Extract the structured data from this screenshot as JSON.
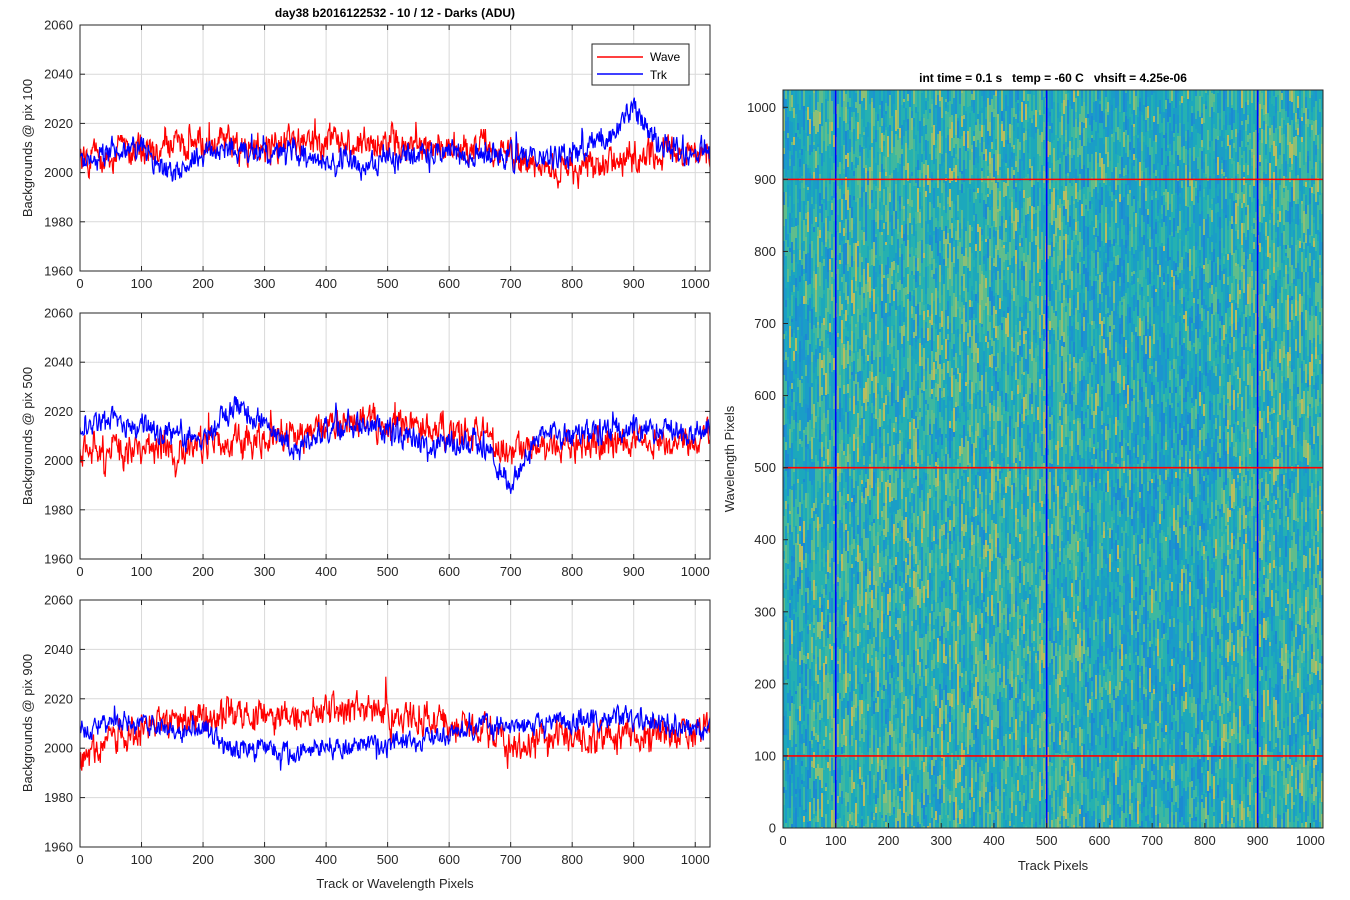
{
  "figure_title": "day38 b2016122532 - 10 / 12 - Darks (ADU)",
  "colors": {
    "wave": "#ff0000",
    "trk": "#0000ff",
    "grid": "#d9d9d9",
    "axis": "#262626"
  },
  "chart_data": [
    {
      "type": "line",
      "title": "day38 b2016122532 - 10 / 12 - Darks (ADU)",
      "xlabel": "",
      "ylabel": "Backgrounds @ pix 100",
      "xlim": [
        0,
        1024
      ],
      "ylim": [
        1960,
        2060
      ],
      "xticks": [
        0,
        100,
        200,
        300,
        400,
        500,
        600,
        700,
        800,
        900,
        1000
      ],
      "yticks": [
        1960,
        1980,
        2000,
        2020,
        2040,
        2060
      ],
      "grid": true,
      "legend": {
        "position": "top-right",
        "entries": [
          "Wave",
          "Trk"
        ]
      },
      "series": [
        {
          "name": "Wave",
          "color": "#ff0000",
          "x": [
            0,
            50,
            100,
            150,
            200,
            250,
            300,
            350,
            400,
            450,
            500,
            550,
            600,
            650,
            700,
            750,
            800,
            850,
            900,
            950,
            1000,
            1023
          ],
          "mean": [
            2005,
            2008,
            2009,
            2010,
            2012,
            2011,
            2010,
            2012,
            2012,
            2011,
            2012,
            2010,
            2010,
            2012,
            2007,
            2003,
            2001,
            2003,
            2006,
            2008,
            2007,
            2008
          ],
          "amplitude": 9
        },
        {
          "name": "Trk",
          "color": "#0000ff",
          "x": [
            0,
            50,
            100,
            150,
            200,
            250,
            300,
            350,
            400,
            450,
            500,
            550,
            600,
            650,
            700,
            750,
            800,
            850,
            900,
            950,
            1000,
            1023
          ],
          "mean": [
            2004,
            2008,
            2010,
            2000,
            2008,
            2010,
            2007,
            2008,
            2005,
            2003,
            2005,
            2008,
            2009,
            2008,
            2007,
            2006,
            2007,
            2014,
            2026,
            2010,
            2008,
            2010
          ],
          "amplitude": 7
        }
      ]
    },
    {
      "type": "line",
      "title": "",
      "xlabel": "",
      "ylabel": "Backgrounds @ pix 500",
      "xlim": [
        0,
        1024
      ],
      "ylim": [
        1960,
        2060
      ],
      "xticks": [
        0,
        100,
        200,
        300,
        400,
        500,
        600,
        700,
        800,
        900,
        1000
      ],
      "yticks": [
        1960,
        1980,
        2000,
        2020,
        2040,
        2060
      ],
      "grid": true,
      "series": [
        {
          "name": "Wave",
          "color": "#ff0000",
          "x": [
            0,
            50,
            100,
            150,
            200,
            250,
            300,
            350,
            400,
            450,
            500,
            550,
            600,
            650,
            700,
            750,
            800,
            850,
            900,
            950,
            1000,
            1023
          ],
          "mean": [
            2002,
            2004,
            2004,
            2005,
            2007,
            2008,
            2008,
            2010,
            2014,
            2016,
            2014,
            2013,
            2012,
            2010,
            2004,
            2004,
            2005,
            2006,
            2008,
            2008,
            2006,
            2010
          ],
          "amplitude": 9
        },
        {
          "name": "Trk",
          "color": "#0000ff",
          "x": [
            0,
            50,
            100,
            150,
            200,
            250,
            300,
            350,
            400,
            450,
            500,
            550,
            600,
            650,
            700,
            750,
            800,
            850,
            900,
            950,
            1000,
            1023
          ],
          "mean": [
            2012,
            2016,
            2014,
            2010,
            2008,
            2022,
            2016,
            2004,
            2012,
            2014,
            2012,
            2008,
            2006,
            2008,
            1990,
            2010,
            2010,
            2012,
            2012,
            2012,
            2010,
            2012
          ],
          "amplitude": 7
        }
      ]
    },
    {
      "type": "line",
      "title": "",
      "xlabel": "Track or Wavelength Pixels",
      "ylabel": "Backgrounds @ pix 900",
      "xlim": [
        0,
        1024
      ],
      "ylim": [
        1960,
        2060
      ],
      "xticks": [
        0,
        100,
        200,
        300,
        400,
        500,
        600,
        700,
        800,
        900,
        1000
      ],
      "yticks": [
        1960,
        1980,
        2000,
        2020,
        2040,
        2060
      ],
      "grid": true,
      "series": [
        {
          "name": "Wave",
          "color": "#ff0000",
          "x": [
            0,
            50,
            100,
            150,
            200,
            250,
            300,
            350,
            400,
            450,
            500,
            550,
            600,
            650,
            700,
            750,
            800,
            850,
            900,
            950,
            1000,
            1023
          ],
          "mean": [
            1995,
            2003,
            2008,
            2010,
            2012,
            2014,
            2012,
            2014,
            2015,
            2016,
            2014,
            2012,
            2010,
            2008,
            2000,
            2004,
            2005,
            2004,
            2005,
            2006,
            2006,
            2010
          ],
          "amplitude": 9
        },
        {
          "name": "Trk",
          "color": "#0000ff",
          "x": [
            0,
            50,
            100,
            150,
            200,
            250,
            300,
            350,
            400,
            450,
            500,
            550,
            600,
            650,
            700,
            750,
            800,
            850,
            900,
            950,
            1000,
            1023
          ],
          "mean": [
            2008,
            2010,
            2010,
            2008,
            2008,
            1998,
            2000,
            1997,
            2000,
            2000,
            2002,
            2004,
            2006,
            2008,
            2008,
            2010,
            2010,
            2012,
            2012,
            2010,
            2008,
            2008
          ],
          "amplitude": 6
        }
      ]
    },
    {
      "type": "heatmap",
      "title": "int time = 0.1 s   temp = -60 C   vhsift = 4.25e-06",
      "xlabel": "Track Pixels",
      "ylabel": "Wavelength Pixels",
      "xlim": [
        0,
        1024
      ],
      "ylim": [
        0,
        1024
      ],
      "xticks": [
        0,
        100,
        200,
        300,
        400,
        500,
        600,
        700,
        800,
        900,
        1000
      ],
      "yticks": [
        0,
        100,
        200,
        300,
        400,
        500,
        600,
        700,
        800,
        900,
        1000
      ],
      "colormap": "parula",
      "vertical_lines": {
        "values": [
          100,
          500,
          900
        ],
        "color": "#0000ff"
      },
      "horizontal_lines": {
        "values": [
          100,
          500,
          900
        ],
        "color": "#ff0000"
      }
    }
  ]
}
